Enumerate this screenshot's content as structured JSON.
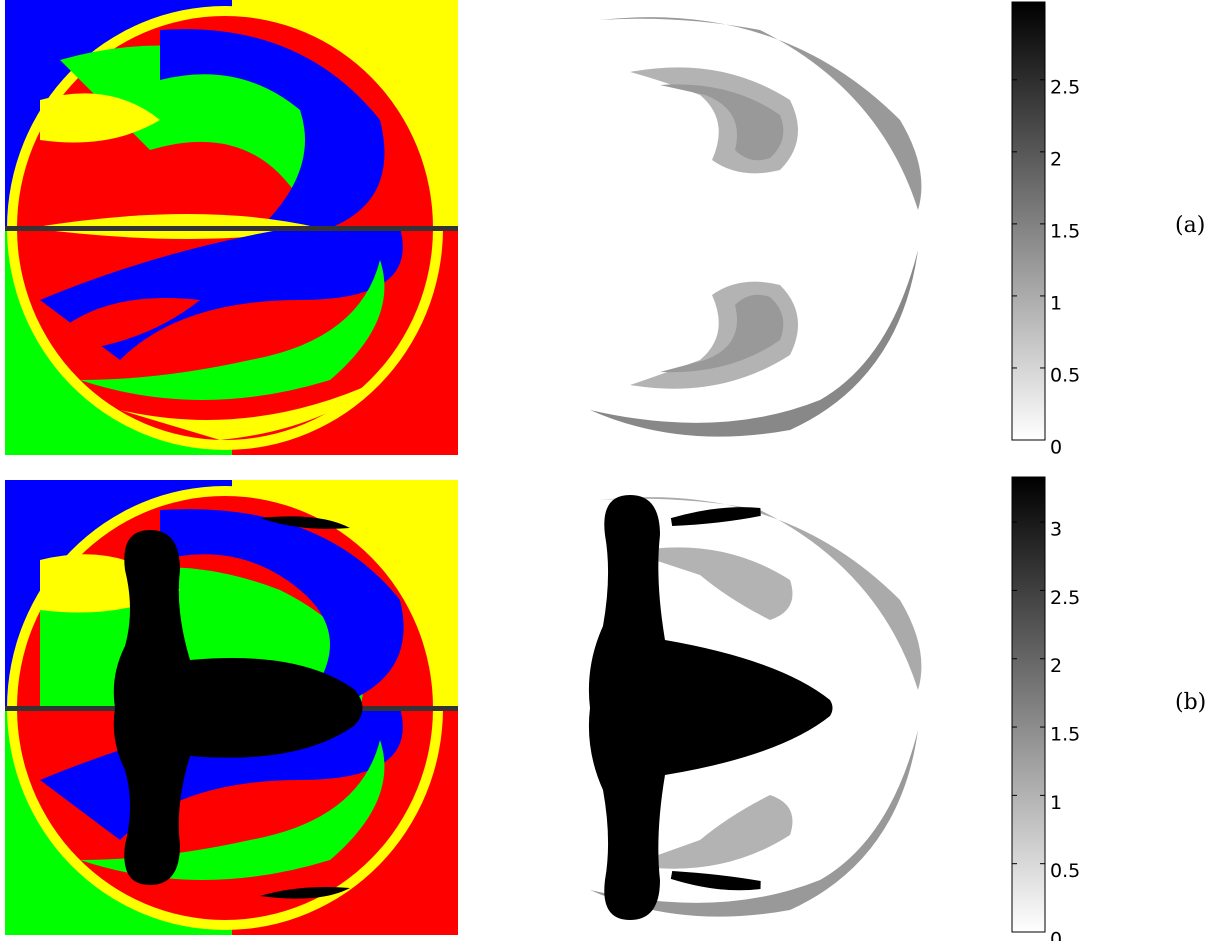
{
  "panels": [
    {
      "label": "(a)",
      "colorbar": {
        "lim": [
          0,
          3.04
        ],
        "ticks": [
          0,
          0.5,
          1,
          1.5,
          2,
          2.5
        ]
      }
    },
    {
      "label": "(b)",
      "colorbar": {
        "lim": [
          0,
          3.33
        ],
        "ticks": [
          0,
          0.5,
          1,
          1.5,
          2,
          2.5,
          3
        ]
      }
    }
  ]
}
